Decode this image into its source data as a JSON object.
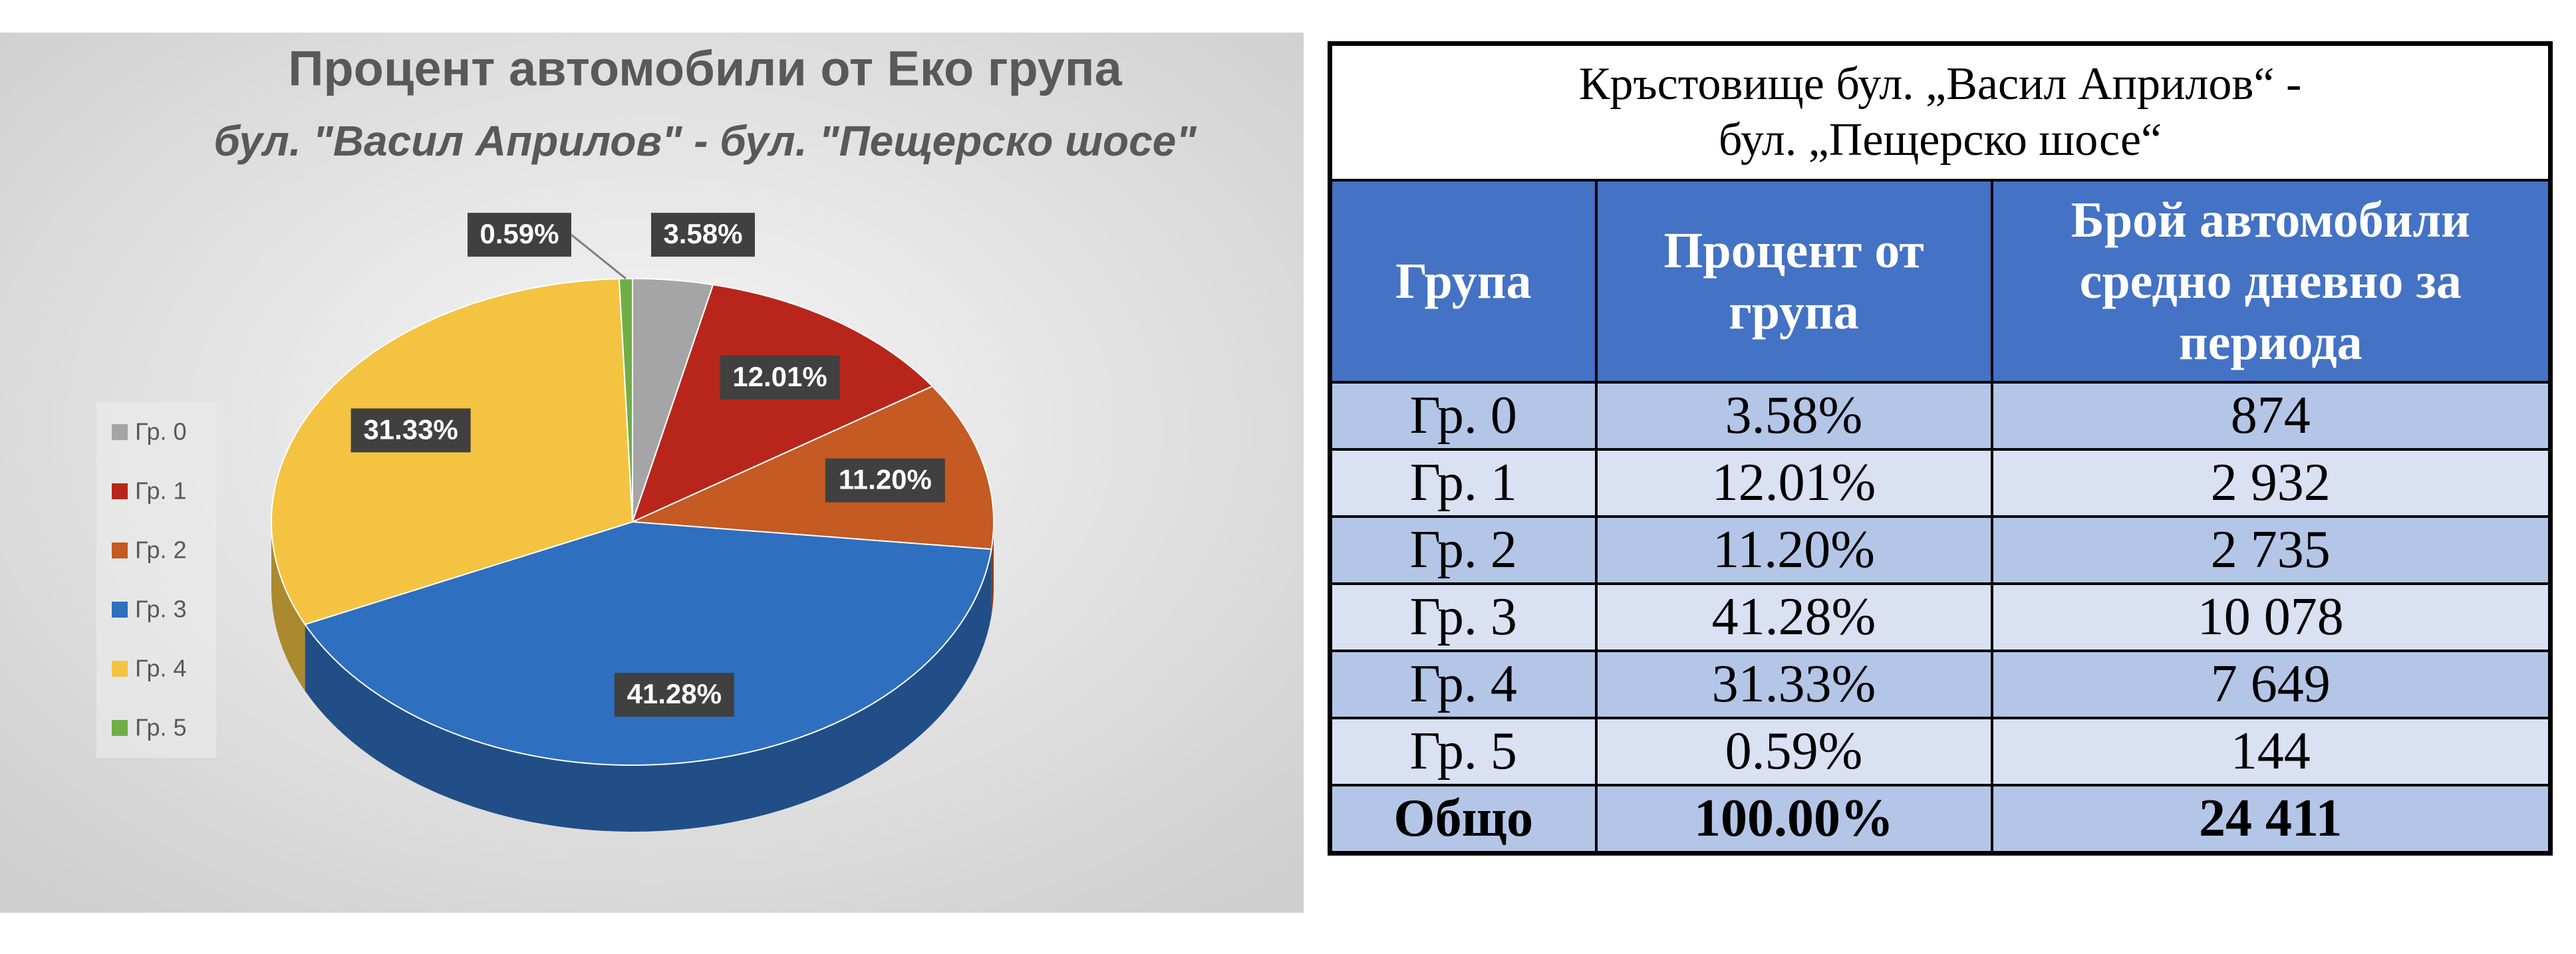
{
  "chart_data": {
    "type": "pie",
    "title": "Процент автомобили от Еко група",
    "subtitle": "бул. \"Васил Априлов\" - бул. \"Пещерско шосе\"",
    "categories": [
      "Гр. 0",
      "Гр. 1",
      "Гр. 2",
      "Гр. 3",
      "Гр. 4",
      "Гр. 5"
    ],
    "values": [
      3.58,
      12.01,
      11.2,
      41.28,
      31.33,
      0.59
    ],
    "value_labels": [
      "3.58%",
      "12.01%",
      "11.20%",
      "41.28%",
      "31.33%",
      "0.59%"
    ],
    "colors": [
      "#a5a5a5",
      "#b8261b",
      "#c55a22",
      "#2f6fc0",
      "#f4c342",
      "#70ad47"
    ],
    "legend": "left"
  },
  "table": {
    "title": [
      "Кръстовище бул. „Васил Априлов“ -",
      "бул. „Пещерско шосе“"
    ],
    "header": [
      "Група",
      "Процент от група",
      "Брой автомобили средно дневно за периода"
    ],
    "rows": [
      [
        "Гр. 0",
        "3.58%",
        "874"
      ],
      [
        "Гр. 1",
        "12.01%",
        "2 932"
      ],
      [
        "Гр. 2",
        "11.20%",
        "2 735"
      ],
      [
        "Гр. 3",
        "41.28%",
        "10 078"
      ],
      [
        "Гр. 4",
        "31.33%",
        "7 649"
      ],
      [
        "Гр. 5",
        "0.59%",
        "144"
      ],
      [
        "Общо",
        "100.00%",
        "24 411"
      ]
    ]
  }
}
